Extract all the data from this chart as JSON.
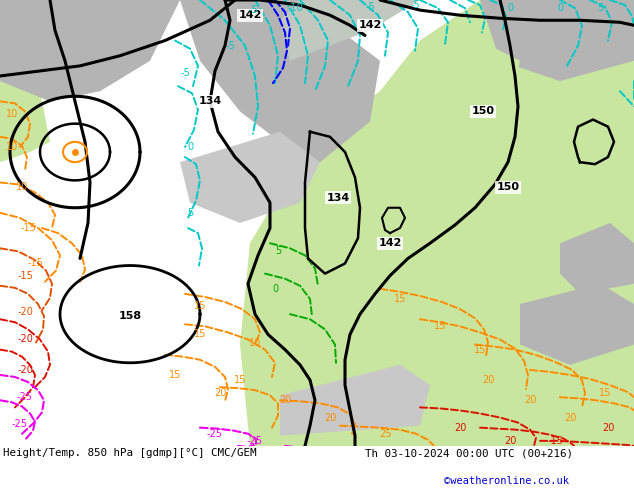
{
  "title_left": "Height/Temp. 850 hPa [gdmp][°C] CMC/GEM",
  "title_right": "Th 03-10-2024 00:00 UTC (00+216)",
  "watermark": "©weatheronline.co.uk",
  "bg_color": "#ffffff",
  "fig_width": 6.34,
  "fig_height": 4.9,
  "dpi": 100,
  "land_green": "#c8e6a0",
  "land_gray": "#b4b4b4",
  "sea_gray": "#d0d0d0",
  "bottom_text_color": "#000000",
  "watermark_color": "#0000cc",
  "geo_color": "#000000",
  "temp_orange": "#ff8c00",
  "temp_dark_orange": "#e05000",
  "temp_cyan": "#00c8c8",
  "temp_green": "#00aa00",
  "temp_blue": "#0000ff",
  "temp_red": "#dd1100",
  "temp_pink": "#ee00ee"
}
